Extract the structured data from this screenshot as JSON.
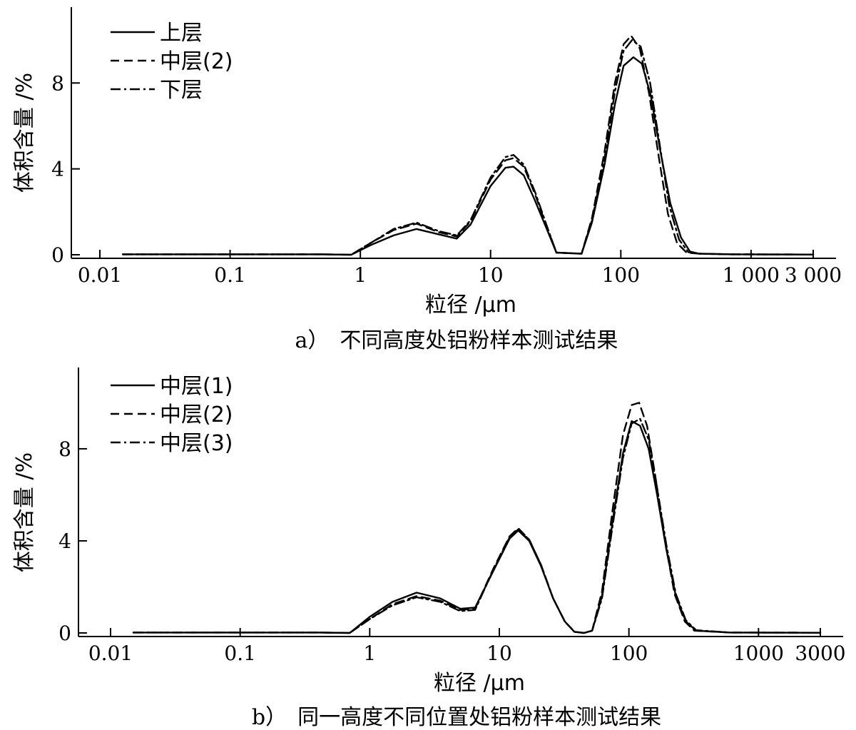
{
  "chart_data": [
    {
      "type": "line",
      "caption": "a）　不同高度处铝粉样本测试结果",
      "xlabel": "粒径 /μm",
      "ylabel": "体积含量 /%",
      "xscale": "log",
      "xlim": [
        0.01,
        3000
      ],
      "ylim": [
        0,
        11.5
      ],
      "x_ticks": [
        0.01,
        0.1,
        1,
        10,
        100,
        1000,
        3000
      ],
      "x_tick_labels": [
        "0.01",
        "0.1",
        "1",
        "10",
        "100",
        "1 000",
        "3 000"
      ],
      "y_ticks": [
        0,
        4,
        8
      ],
      "y_tick_labels": [
        "0",
        "4",
        "8"
      ],
      "legend_position": "top-left",
      "series": [
        {
          "name": "上层",
          "style": "solid",
          "x": [
            0.015,
            0.1,
            0.5,
            0.85,
            1.2,
            1.8,
            2.7,
            4,
            5.5,
            7,
            10,
            13,
            15,
            18,
            22,
            27,
            32,
            50,
            60,
            75,
            90,
            105,
            125,
            145,
            170,
            200,
            240,
            290,
            340,
            400,
            700,
            3000
          ],
          "y": [
            0.02,
            0.02,
            0.02,
            0,
            0.45,
            0.9,
            1.2,
            0.95,
            0.75,
            1.4,
            3.2,
            4.05,
            4.1,
            3.7,
            2.5,
            1.2,
            0.1,
            0.05,
            1.5,
            4.2,
            7.0,
            8.8,
            9.2,
            8.9,
            7.4,
            4.9,
            2.4,
            0.8,
            0.15,
            0.05,
            0.02,
            0.01
          ]
        },
        {
          "name": "中层(2)",
          "style": "dashed",
          "x": [
            0.015,
            0.1,
            0.5,
            0.85,
            1.2,
            1.8,
            2.7,
            4,
            5.5,
            7,
            10,
            13,
            15,
            18,
            22,
            27,
            32,
            50,
            60,
            75,
            90,
            105,
            120,
            140,
            165,
            195,
            230,
            270,
            320,
            400,
            700,
            3000
          ],
          "y": [
            0.02,
            0.02,
            0.02,
            0,
            0.55,
            1.15,
            1.45,
            1.05,
            0.85,
            1.55,
            3.5,
            4.4,
            4.5,
            4.1,
            2.8,
            1.3,
            0.1,
            0.05,
            1.7,
            4.8,
            8.0,
            9.8,
            10.2,
            9.6,
            7.5,
            4.6,
            1.9,
            0.55,
            0.1,
            0.05,
            0.02,
            0.01
          ]
        },
        {
          "name": "下层",
          "style": "dashdot",
          "x": [
            0.015,
            0.1,
            0.5,
            0.85,
            1.2,
            1.8,
            2.7,
            4,
            5.5,
            7,
            10,
            13,
            15,
            18,
            22,
            27,
            32,
            50,
            60,
            75,
            90,
            105,
            122,
            142,
            168,
            198,
            235,
            280,
            330,
            400,
            700,
            3000
          ],
          "y": [
            0.02,
            0.02,
            0.02,
            0,
            0.55,
            1.2,
            1.5,
            1.1,
            0.9,
            1.6,
            3.6,
            4.55,
            4.65,
            4.2,
            2.9,
            1.35,
            0.1,
            0.05,
            1.6,
            4.5,
            7.6,
            9.5,
            10.0,
            9.7,
            8.0,
            5.2,
            2.3,
            0.7,
            0.12,
            0.05,
            0.02,
            0.01
          ]
        }
      ]
    },
    {
      "type": "line",
      "caption": "b）　同一高度不同位置处铝粉样本测试结果",
      "xlabel": "粒径 /μm",
      "ylabel": "体积含量 /%",
      "xscale": "log",
      "xlim": [
        0.01,
        3000
      ],
      "ylim": [
        0,
        11.5
      ],
      "x_ticks": [
        0.01,
        0.1,
        1,
        10,
        100,
        1000,
        3000
      ],
      "x_tick_labels": [
        "0.01",
        "0.1",
        "1",
        "10",
        "100",
        "1000",
        "3000"
      ],
      "y_ticks": [
        0,
        4,
        8
      ],
      "y_tick_labels": [
        "0",
        "4",
        "8"
      ],
      "legend_position": "top-left",
      "series": [
        {
          "name": "中层(1)",
          "style": "solid",
          "x": [
            0.015,
            0.1,
            0.4,
            0.7,
            1,
            1.5,
            2.3,
            3.5,
            5,
            6.5,
            9,
            12,
            14,
            17,
            21,
            26,
            32,
            38,
            45,
            52,
            62,
            75,
            90,
            105,
            122,
            142,
            165,
            195,
            230,
            275,
            330,
            600,
            3000
          ],
          "y": [
            0.02,
            0.02,
            0.02,
            0,
            0.7,
            1.35,
            1.75,
            1.5,
            1.05,
            1.1,
            2.7,
            4.1,
            4.45,
            4.0,
            2.9,
            1.5,
            0.5,
            0.05,
            0,
            0.1,
            1.6,
            4.9,
            7.8,
            9.2,
            9.0,
            8.0,
            6.0,
            3.6,
            1.6,
            0.5,
            0.1,
            0.02,
            0.01
          ]
        },
        {
          "name": "中层(2)",
          "style": "dashed",
          "x": [
            0.015,
            0.1,
            0.4,
            0.7,
            1,
            1.5,
            2.3,
            3.5,
            5,
            6.5,
            9,
            12,
            14,
            17,
            21,
            26,
            32,
            38,
            45,
            52,
            62,
            75,
            90,
            105,
            120,
            138,
            160,
            190,
            225,
            270,
            320,
            600,
            3000
          ],
          "y": [
            0.02,
            0.02,
            0.02,
            0,
            0.6,
            1.25,
            1.6,
            1.4,
            1.0,
            1.05,
            2.8,
            4.2,
            4.55,
            4.05,
            2.95,
            1.5,
            0.5,
            0.05,
            0,
            0.1,
            1.8,
            5.4,
            8.6,
            9.9,
            10.0,
            9.0,
            6.8,
            4.0,
            1.7,
            0.5,
            0.1,
            0.02,
            0.01
          ]
        },
        {
          "name": "中层(3)",
          "style": "dashdot",
          "x": [
            0.015,
            0.1,
            0.4,
            0.7,
            1,
            1.5,
            2.3,
            3.5,
            5,
            6.5,
            9,
            12,
            14,
            17,
            21,
            26,
            32,
            38,
            45,
            52,
            62,
            75,
            90,
            105,
            122,
            142,
            165,
            195,
            230,
            275,
            330,
            600,
            3000
          ],
          "y": [
            0.02,
            0.02,
            0.02,
            0,
            0.6,
            1.2,
            1.55,
            1.35,
            0.95,
            1.0,
            2.75,
            4.15,
            4.5,
            4.05,
            2.95,
            1.5,
            0.5,
            0.05,
            0,
            0.1,
            1.5,
            4.7,
            7.6,
            9.1,
            9.3,
            8.4,
            6.3,
            3.8,
            1.7,
            0.55,
            0.12,
            0.02,
            0.01
          ]
        }
      ]
    }
  ]
}
